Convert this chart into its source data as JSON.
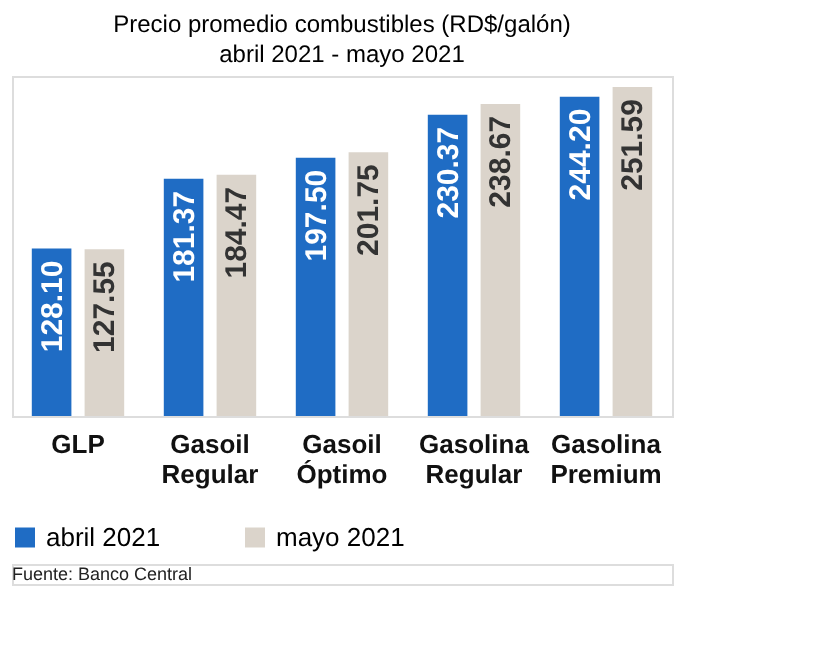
{
  "chart_data": {
    "type": "bar",
    "title": "Precio promedio combustibles (RD$/galón)",
    "subtitle": "abril 2021 - mayo 2021",
    "categories": [
      "GLP",
      "Gasoil Regular",
      "Gasoil Óptimo",
      "Gasolina Regular",
      "Gasolina Premium"
    ],
    "series": [
      {
        "name": "abril 2021",
        "color": "#1f6cc4",
        "values": [
          128.1,
          181.37,
          197.5,
          230.37,
          244.2
        ],
        "value_labels": [
          "128.10",
          "181.37",
          "197.50",
          "230.37",
          "244.20"
        ]
      },
      {
        "name": "mayo 2021",
        "color": "#dbd4cb",
        "values": [
          127.55,
          184.47,
          201.75,
          238.67,
          251.59
        ],
        "value_labels": [
          "127.55",
          "184.47",
          "201.75",
          "238.67",
          "251.59"
        ]
      }
    ],
    "legend": "bottom",
    "grid": false,
    "annotations": [
      "Fuente: Banco Central"
    ]
  }
}
